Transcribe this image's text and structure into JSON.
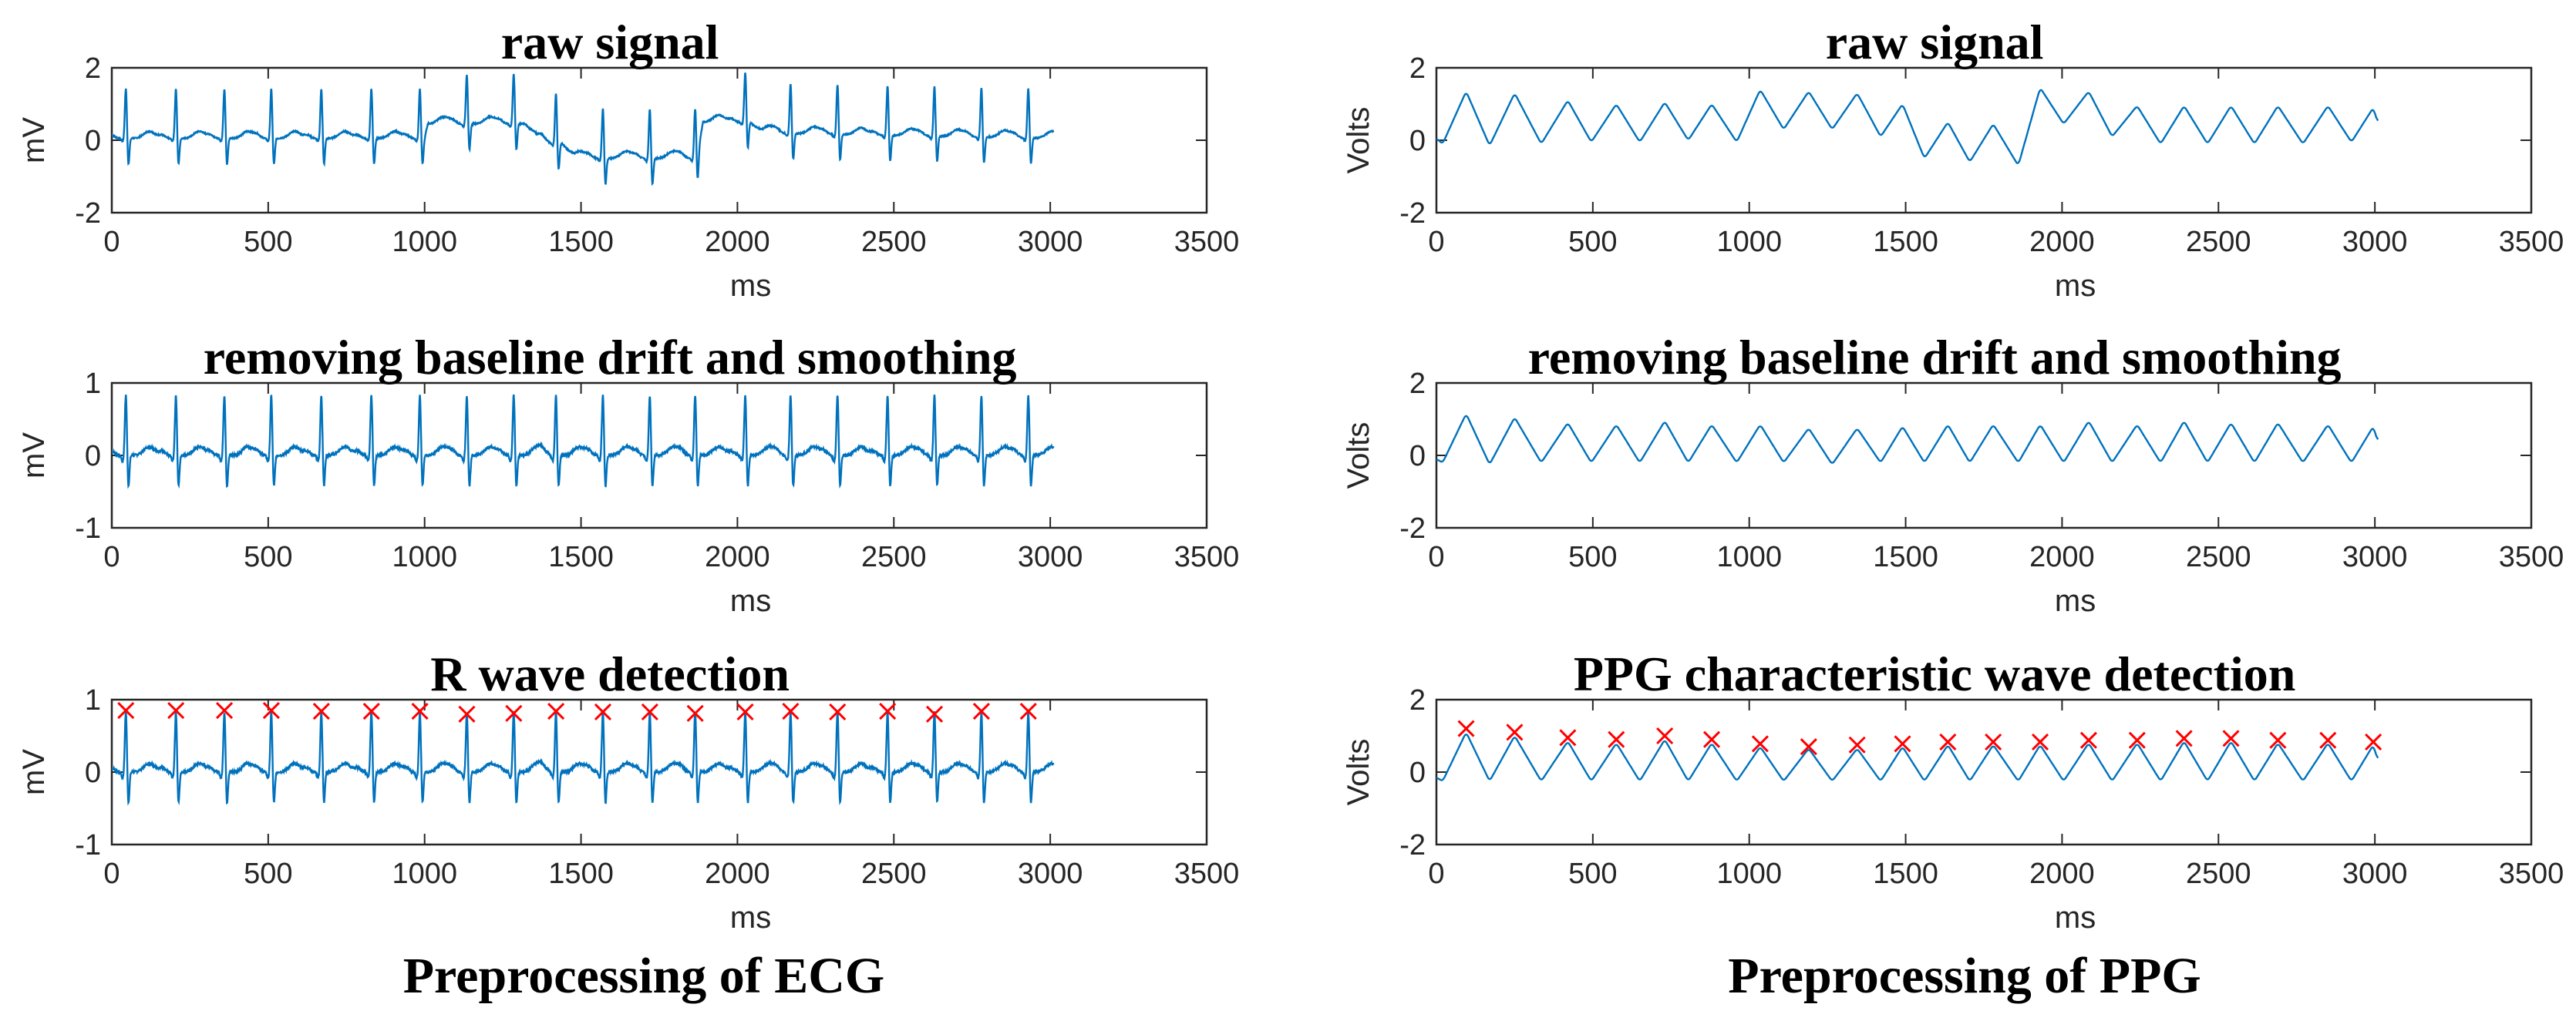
{
  "chart_data": [
    {
      "id": "ecg-raw",
      "type": "line",
      "title": "raw signal",
      "xlabel": "ms",
      "ylabel": "mV",
      "xlim": [
        0,
        3500
      ],
      "ylim": [
        -2,
        2
      ],
      "xticks": [
        0,
        500,
        1000,
        1500,
        2000,
        2500,
        3000,
        3500
      ],
      "yticks": [
        -2,
        0,
        2
      ],
      "color": "#0072BD",
      "signal": {
        "kind": "ecg",
        "duration_ms": 3010,
        "r_peaks_ms": [
          45,
          205,
          360,
          510,
          670,
          830,
          985,
          1135,
          1285,
          1420,
          1570,
          1720,
          1865,
          2025,
          2170,
          2320,
          2480,
          2630,
          2780,
          2930
        ],
        "baseline": [
          [
            0,
            0.05
          ],
          [
            1000,
            0.05
          ],
          [
            1010,
            0.45
          ],
          [
            1320,
            0.45
          ],
          [
            1360,
            -0.05
          ],
          [
            1440,
            -0.1
          ],
          [
            1480,
            -0.5
          ],
          [
            1870,
            -0.5
          ],
          [
            1890,
            0.5
          ],
          [
            2040,
            0.5
          ],
          [
            2080,
            0.2
          ],
          [
            3010,
            0.05
          ]
        ],
        "amplitude": 1.4,
        "s_depth": -0.75
      }
    },
    {
      "id": "ecg-filtered",
      "type": "line",
      "title": "removing baseline drift and smoothing",
      "xlabel": "ms",
      "ylabel": "mV",
      "xlim": [
        0,
        3500
      ],
      "ylim": [
        -1,
        1
      ],
      "xticks": [
        0,
        500,
        1000,
        1500,
        2000,
        2500,
        3000,
        3500
      ],
      "yticks": [
        -1,
        0,
        1
      ],
      "color": "#0072BD",
      "signal": {
        "kind": "ecg",
        "duration_ms": 3010,
        "r_peaks_ms": [
          45,
          205,
          360,
          510,
          670,
          830,
          985,
          1135,
          1285,
          1420,
          1570,
          1720,
          1865,
          2025,
          2170,
          2320,
          2480,
          2630,
          2780,
          2930
        ],
        "baseline": [
          [
            0,
            0
          ],
          [
            3010,
            0
          ]
        ],
        "amplitude": 0.85,
        "s_depth": -0.45
      }
    },
    {
      "id": "ecg-rwave",
      "type": "line",
      "title": "R wave detection",
      "xlabel": "ms",
      "ylabel": "mV",
      "xlim": [
        0,
        3500
      ],
      "ylim": [
        -1,
        1
      ],
      "xticks": [
        0,
        500,
        1000,
        1500,
        2000,
        2500,
        3000,
        3500
      ],
      "yticks": [
        -1,
        0,
        1
      ],
      "color": "#0072BD",
      "signal": {
        "kind": "ecg",
        "duration_ms": 3010,
        "r_peaks_ms": [
          45,
          205,
          360,
          510,
          670,
          830,
          985,
          1135,
          1285,
          1420,
          1570,
          1720,
          1865,
          2025,
          2170,
          2320,
          2480,
          2630,
          2780,
          2930
        ],
        "baseline": [
          [
            0,
            0
          ],
          [
            3010,
            0
          ]
        ],
        "amplitude": 0.85,
        "s_depth": -0.45
      },
      "markers": {
        "symbol": "x",
        "color": "#FF0000",
        "points": [
          [
            45,
            0.85
          ],
          [
            205,
            0.85
          ],
          [
            360,
            0.85
          ],
          [
            510,
            0.85
          ],
          [
            670,
            0.84
          ],
          [
            830,
            0.84
          ],
          [
            985,
            0.84
          ],
          [
            1135,
            0.8
          ],
          [
            1285,
            0.81
          ],
          [
            1420,
            0.84
          ],
          [
            1570,
            0.83
          ],
          [
            1720,
            0.83
          ],
          [
            1865,
            0.81
          ],
          [
            2025,
            0.83
          ],
          [
            2170,
            0.84
          ],
          [
            2320,
            0.83
          ],
          [
            2480,
            0.84
          ],
          [
            2630,
            0.8
          ],
          [
            2780,
            0.84
          ],
          [
            2930,
            0.84
          ]
        ]
      }
    },
    {
      "id": "ppg-raw",
      "type": "line",
      "title": "raw signal",
      "xlabel": "ms",
      "ylabel": "Volts",
      "xlim": [
        0,
        3500
      ],
      "ylim": [
        -2,
        2
      ],
      "xticks": [
        0,
        500,
        1000,
        1500,
        2000,
        2500,
        3000,
        3500
      ],
      "yticks": [
        -2,
        0,
        2
      ],
      "color": "#0072BD",
      "signal": {
        "kind": "ppg",
        "duration_ms": 3010,
        "start_ms": 0,
        "start_val": 0.05,
        "peaks": [
          [
            95,
            1.35
          ],
          [
            250,
            1.3
          ],
          [
            420,
            1.1
          ],
          [
            575,
            1.0
          ],
          [
            730,
            1.05
          ],
          [
            880,
            1.0
          ],
          [
            1035,
            1.4
          ],
          [
            1190,
            1.35
          ],
          [
            1345,
            1.3
          ],
          [
            1490,
            1.0
          ],
          [
            1635,
            0.5
          ],
          [
            1780,
            0.45
          ],
          [
            1930,
            1.45
          ],
          [
            2085,
            1.35
          ],
          [
            2240,
            0.95
          ],
          [
            2390,
            0.95
          ],
          [
            2540,
            0.95
          ],
          [
            2690,
            0.95
          ],
          [
            2850,
            0.95
          ],
          [
            2995,
            0.9
          ]
        ],
        "troughs": [
          [
            20,
            -0.1
          ],
          [
            170,
            -0.15
          ],
          [
            335,
            -0.1
          ],
          [
            495,
            -0.05
          ],
          [
            650,
            -0.05
          ],
          [
            805,
            0.0
          ],
          [
            960,
            -0.05
          ],
          [
            1110,
            0.3
          ],
          [
            1265,
            0.3
          ],
          [
            1420,
            0.1
          ],
          [
            1560,
            -0.5
          ],
          [
            1705,
            -0.6
          ],
          [
            1860,
            -0.7
          ],
          [
            2005,
            0.45
          ],
          [
            2160,
            0.1
          ],
          [
            2315,
            -0.1
          ],
          [
            2465,
            -0.1
          ],
          [
            2615,
            -0.1
          ],
          [
            2770,
            -0.1
          ],
          [
            2925,
            -0.05
          ]
        ],
        "end_val": 0.45
      }
    },
    {
      "id": "ppg-filtered",
      "type": "line",
      "title": "removing baseline drift and smoothing",
      "xlabel": "ms",
      "ylabel": "Volts",
      "xlim": [
        0,
        3500
      ],
      "ylim": [
        -2,
        2
      ],
      "xticks": [
        0,
        500,
        1000,
        1500,
        2000,
        2500,
        3000,
        3500
      ],
      "yticks": [
        -2,
        0,
        2
      ],
      "color": "#0072BD",
      "signal": {
        "kind": "ppg",
        "duration_ms": 3010,
        "start_ms": 0,
        "start_val": -0.1,
        "peaks": [
          [
            95,
            1.15
          ],
          [
            250,
            1.05
          ],
          [
            420,
            0.9
          ],
          [
            575,
            0.85
          ],
          [
            730,
            0.95
          ],
          [
            880,
            0.85
          ],
          [
            1035,
            0.85
          ],
          [
            1190,
            0.75
          ],
          [
            1345,
            0.75
          ],
          [
            1490,
            0.8
          ],
          [
            1635,
            0.85
          ],
          [
            1780,
            0.85
          ],
          [
            1930,
            0.85
          ],
          [
            2085,
            0.95
          ],
          [
            2240,
            0.85
          ],
          [
            2390,
            0.95
          ],
          [
            2540,
            0.9
          ],
          [
            2690,
            0.9
          ],
          [
            2850,
            0.85
          ],
          [
            2995,
            0.8
          ]
        ],
        "troughs": [
          [
            20,
            -0.2
          ],
          [
            170,
            -0.25
          ],
          [
            335,
            -0.2
          ],
          [
            495,
            -0.2
          ],
          [
            650,
            -0.2
          ],
          [
            805,
            -0.2
          ],
          [
            960,
            -0.2
          ],
          [
            1110,
            -0.2
          ],
          [
            1265,
            -0.25
          ],
          [
            1420,
            -0.2
          ],
          [
            1560,
            -0.2
          ],
          [
            1705,
            -0.2
          ],
          [
            1860,
            -0.2
          ],
          [
            2005,
            -0.2
          ],
          [
            2160,
            -0.2
          ],
          [
            2315,
            -0.2
          ],
          [
            2465,
            -0.2
          ],
          [
            2615,
            -0.2
          ],
          [
            2770,
            -0.2
          ],
          [
            2925,
            -0.2
          ]
        ],
        "end_val": 0.35
      }
    },
    {
      "id": "ppg-detect",
      "type": "line",
      "title": "PPG characteristic wave detection",
      "xlabel": "ms",
      "ylabel": "Volts",
      "xlim": [
        0,
        3500
      ],
      "ylim": [
        -2,
        2
      ],
      "xticks": [
        0,
        500,
        1000,
        1500,
        2000,
        2500,
        3000,
        3500
      ],
      "yticks": [
        -2,
        0,
        2
      ],
      "color": "#0072BD",
      "signal": {
        "kind": "ppg",
        "duration_ms": 3010,
        "start_ms": 0,
        "start_val": -0.15,
        "peaks": [
          [
            95,
            1.1
          ],
          [
            250,
            1.0
          ],
          [
            420,
            0.85
          ],
          [
            575,
            0.8
          ],
          [
            730,
            0.9
          ],
          [
            880,
            0.8
          ],
          [
            1035,
            0.7
          ],
          [
            1190,
            0.65
          ],
          [
            1345,
            0.65
          ],
          [
            1490,
            0.7
          ],
          [
            1635,
            0.75
          ],
          [
            1780,
            0.75
          ],
          [
            1930,
            0.75
          ],
          [
            2085,
            0.8
          ],
          [
            2240,
            0.8
          ],
          [
            2390,
            0.85
          ],
          [
            2540,
            0.85
          ],
          [
            2690,
            0.8
          ],
          [
            2850,
            0.8
          ],
          [
            2995,
            0.75
          ]
        ],
        "troughs": [
          [
            20,
            -0.25
          ],
          [
            170,
            -0.25
          ],
          [
            335,
            -0.25
          ],
          [
            495,
            -0.25
          ],
          [
            650,
            -0.25
          ],
          [
            805,
            -0.25
          ],
          [
            960,
            -0.25
          ],
          [
            1110,
            -0.25
          ],
          [
            1265,
            -0.25
          ],
          [
            1420,
            -0.25
          ],
          [
            1560,
            -0.25
          ],
          [
            1705,
            -0.25
          ],
          [
            1860,
            -0.25
          ],
          [
            2005,
            -0.25
          ],
          [
            2160,
            -0.25
          ],
          [
            2315,
            -0.25
          ],
          [
            2465,
            -0.25
          ],
          [
            2615,
            -0.25
          ],
          [
            2770,
            -0.25
          ],
          [
            2925,
            -0.25
          ]
        ],
        "end_val": 0.3
      },
      "markers": {
        "symbol": "x",
        "color": "#FF0000",
        "points": [
          [
            95,
            1.2
          ],
          [
            250,
            1.1
          ],
          [
            420,
            0.95
          ],
          [
            575,
            0.9
          ],
          [
            730,
            1.0
          ],
          [
            880,
            0.9
          ],
          [
            1035,
            0.78
          ],
          [
            1190,
            0.7
          ],
          [
            1345,
            0.75
          ],
          [
            1490,
            0.78
          ],
          [
            1635,
            0.83
          ],
          [
            1780,
            0.83
          ],
          [
            1930,
            0.83
          ],
          [
            2085,
            0.88
          ],
          [
            2240,
            0.88
          ],
          [
            2390,
            0.93
          ],
          [
            2540,
            0.93
          ],
          [
            2690,
            0.88
          ],
          [
            2850,
            0.88
          ],
          [
            2995,
            0.83
          ]
        ]
      }
    }
  ],
  "captions": {
    "left": "Preprocessing of ECG",
    "right": "Preprocessing of PPG"
  }
}
